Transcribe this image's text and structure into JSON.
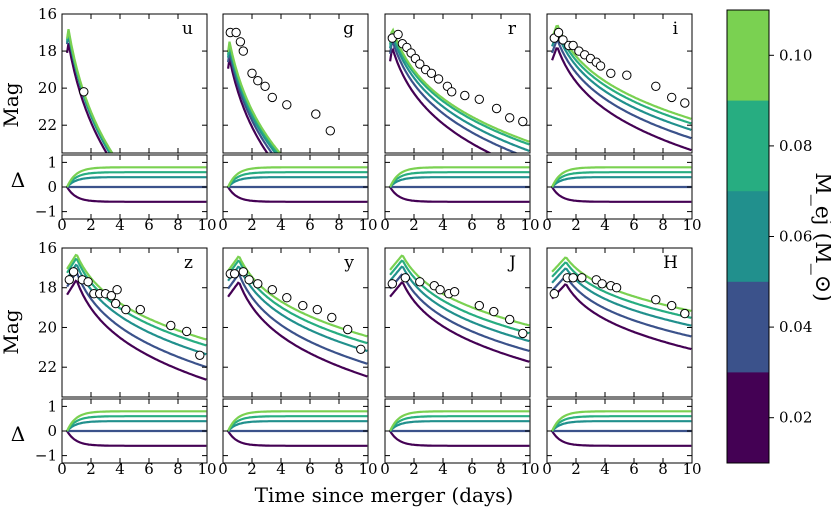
{
  "figure": {
    "xlabel": "Time since merger (days)",
    "ylabel_mag": "Mag",
    "ylabel_delta": "Δ",
    "colorbar_label": "M_ej (M_⊙)",
    "colorbar_ticks": [
      "0.02",
      "0.04",
      "0.06",
      "0.08",
      "0.10"
    ]
  },
  "colors": {
    "ejecta_0.02": "#440154",
    "ejecta_0.04": "#3b528b",
    "ejecta_0.06": "#21908d",
    "ejecta_0.08": "#27ad81",
    "ejecta_0.10": "#7ad151",
    "observations": "#ffffff"
  },
  "chart_data": {
    "type": "line",
    "x_range": [
      0,
      10
    ],
    "mag_ylim": [
      23.5,
      16
    ],
    "mag_yticks": [
      16,
      18,
      20,
      22
    ],
    "delta_ylim": [
      -1.3,
      1.3
    ],
    "delta_yticks": [
      1,
      0,
      -1
    ],
    "xticks": [
      0,
      2,
      4,
      6,
      8,
      10
    ],
    "ejecta_masses": [
      0.02,
      0.04,
      0.06,
      0.08,
      0.1
    ],
    "panels": [
      {
        "band": "u",
        "peak": 16.8,
        "t0": 0.35,
        "peak_t": 0.4,
        "decline": [
          2.2,
          2.2,
          2.3,
          2.3,
          2.3
        ],
        "offsets": [
          0.55,
          0.08,
          0.0,
          -0.12,
          -0.22
        ],
        "delta_final": [
          -0.6,
          0.0,
          0.4,
          0.6,
          0.8
        ],
        "observations": [
          [
            1.5,
            20.2
          ]
        ]
      },
      {
        "band": "g",
        "peak": 17.6,
        "t0": 0.35,
        "peak_t": 0.4,
        "decline": [
          1.9,
          1.9,
          1.9,
          1.9,
          1.9
        ],
        "offsets": [
          0.6,
          0.25,
          0.0,
          -0.15,
          -0.3
        ],
        "delta_final": [
          -0.6,
          0.0,
          0.4,
          0.6,
          0.8
        ],
        "observations": [
          [
            0.5,
            17.0
          ],
          [
            0.9,
            17.0
          ],
          [
            1.2,
            17.5
          ],
          [
            1.4,
            18.0
          ],
          [
            2.0,
            19.2
          ],
          [
            2.4,
            19.6
          ],
          [
            2.9,
            19.9
          ],
          [
            3.4,
            20.5
          ],
          [
            4.4,
            20.9
          ],
          [
            6.4,
            21.4
          ],
          [
            7.4,
            22.3
          ]
        ]
      },
      {
        "band": "r",
        "peak": 17.1,
        "t0": 0.35,
        "peak_t": 0.5,
        "decline": [
          1.25,
          1.2,
          1.18,
          1.15,
          1.15
        ],
        "offsets": [
          0.7,
          0.3,
          0.0,
          -0.2,
          -0.35
        ],
        "delta_final": [
          -0.6,
          0.0,
          0.4,
          0.6,
          0.8
        ],
        "observations": [
          [
            0.5,
            17.3
          ],
          [
            0.9,
            17.1
          ],
          [
            1.2,
            17.6
          ],
          [
            1.5,
            17.8
          ],
          [
            1.8,
            18.1
          ],
          [
            2.1,
            18.4
          ],
          [
            2.4,
            18.7
          ],
          [
            2.8,
            19.0
          ],
          [
            3.2,
            19.2
          ],
          [
            3.7,
            19.5
          ],
          [
            4.3,
            19.9
          ],
          [
            4.6,
            20.2
          ],
          [
            5.5,
            20.4
          ],
          [
            6.5,
            20.6
          ],
          [
            7.7,
            21.1
          ],
          [
            8.6,
            21.6
          ],
          [
            9.5,
            21.8
          ]
        ]
      },
      {
        "band": "i",
        "peak": 17.0,
        "t0": 0.35,
        "peak_t": 0.7,
        "decline": [
          1.05,
          1.0,
          0.98,
          0.96,
          0.95
        ],
        "offsets": [
          0.75,
          0.35,
          0.0,
          -0.25,
          -0.45
        ],
        "delta_final": [
          -0.6,
          0.0,
          0.4,
          0.6,
          0.8
        ],
        "observations": [
          [
            0.5,
            17.3
          ],
          [
            0.8,
            17.0
          ],
          [
            1.1,
            17.4
          ],
          [
            1.5,
            17.7
          ],
          [
            1.8,
            17.7
          ],
          [
            2.2,
            18.0
          ],
          [
            2.6,
            18.2
          ],
          [
            3.0,
            18.4
          ],
          [
            3.4,
            18.6
          ],
          [
            3.7,
            18.8
          ],
          [
            4.4,
            19.2
          ],
          [
            5.5,
            19.3
          ],
          [
            7.5,
            19.9
          ],
          [
            8.6,
            20.5
          ],
          [
            9.5,
            20.8
          ]
        ]
      },
      {
        "band": "z",
        "peak": 16.8,
        "t0": 0.35,
        "peak_t": 1.0,
        "decline": [
          0.95,
          0.9,
          0.85,
          0.82,
          0.8
        ],
        "offsets": [
          0.8,
          0.4,
          0.0,
          -0.3,
          -0.5
        ],
        "delta_final": [
          -0.6,
          0.0,
          0.4,
          0.6,
          0.8
        ],
        "observations": [
          [
            0.5,
            17.6
          ],
          [
            0.8,
            17.2
          ],
          [
            1.4,
            17.6
          ],
          [
            1.8,
            17.7
          ],
          [
            2.2,
            18.3
          ],
          [
            2.6,
            18.3
          ],
          [
            3.0,
            18.3
          ],
          [
            3.4,
            18.4
          ],
          [
            3.7,
            18.8
          ],
          [
            3.8,
            18.1
          ],
          [
            4.4,
            19.1
          ],
          [
            5.4,
            19.1
          ],
          [
            7.5,
            19.9
          ],
          [
            8.6,
            20.2
          ],
          [
            9.5,
            21.4
          ]
        ]
      },
      {
        "band": "y",
        "peak": 16.9,
        "t0": 0.35,
        "peak_t": 1.1,
        "decline": [
          0.9,
          0.85,
          0.8,
          0.78,
          0.75
        ],
        "offsets": [
          0.8,
          0.4,
          0.0,
          -0.3,
          -0.5
        ],
        "delta_final": [
          -0.6,
          0.0,
          0.4,
          0.6,
          0.8
        ],
        "observations": [
          [
            0.5,
            17.3
          ],
          [
            0.8,
            17.3
          ],
          [
            1.4,
            17.2
          ],
          [
            1.8,
            17.6
          ],
          [
            2.4,
            17.8
          ],
          [
            3.4,
            18.1
          ],
          [
            4.4,
            18.5
          ],
          [
            5.5,
            18.9
          ],
          [
            6.5,
            19.1
          ],
          [
            7.5,
            19.5
          ],
          [
            8.6,
            20.1
          ],
          [
            9.5,
            21.1
          ]
        ]
      },
      {
        "band": "J",
        "peak": 16.9,
        "t0": 0.35,
        "peak_t": 1.2,
        "decline": [
          0.75,
          0.72,
          0.7,
          0.68,
          0.65
        ],
        "offsets": [
          0.8,
          0.4,
          0.0,
          -0.3,
          -0.55
        ],
        "delta_final": [
          -0.6,
          0.0,
          0.4,
          0.6,
          0.8
        ],
        "observations": [
          [
            0.5,
            17.8
          ],
          [
            1.4,
            17.5
          ],
          [
            2.4,
            17.7
          ],
          [
            3.4,
            17.9
          ],
          [
            3.8,
            18.1
          ],
          [
            4.4,
            18.3
          ],
          [
            4.8,
            18.2
          ],
          [
            6.5,
            18.9
          ],
          [
            7.5,
            19.2
          ],
          [
            8.6,
            19.6
          ],
          [
            9.5,
            20.3
          ]
        ]
      },
      {
        "band": "H",
        "peak": 17.0,
        "t0": 0.35,
        "peak_t": 1.3,
        "decline": [
          0.6,
          0.55,
          0.52,
          0.5,
          0.48
        ],
        "offsets": [
          0.8,
          0.4,
          0.0,
          -0.3,
          -0.55
        ],
        "delta_final": [
          -0.6,
          0.0,
          0.4,
          0.6,
          0.8
        ],
        "observations": [
          [
            0.5,
            18.3
          ],
          [
            1.4,
            17.5
          ],
          [
            1.8,
            17.5
          ],
          [
            2.4,
            17.5
          ],
          [
            3.4,
            17.6
          ],
          [
            3.8,
            17.8
          ],
          [
            4.4,
            17.9
          ],
          [
            4.8,
            18.0
          ],
          [
            7.5,
            18.6
          ],
          [
            8.6,
            18.9
          ],
          [
            9.5,
            19.3
          ]
        ]
      }
    ]
  }
}
